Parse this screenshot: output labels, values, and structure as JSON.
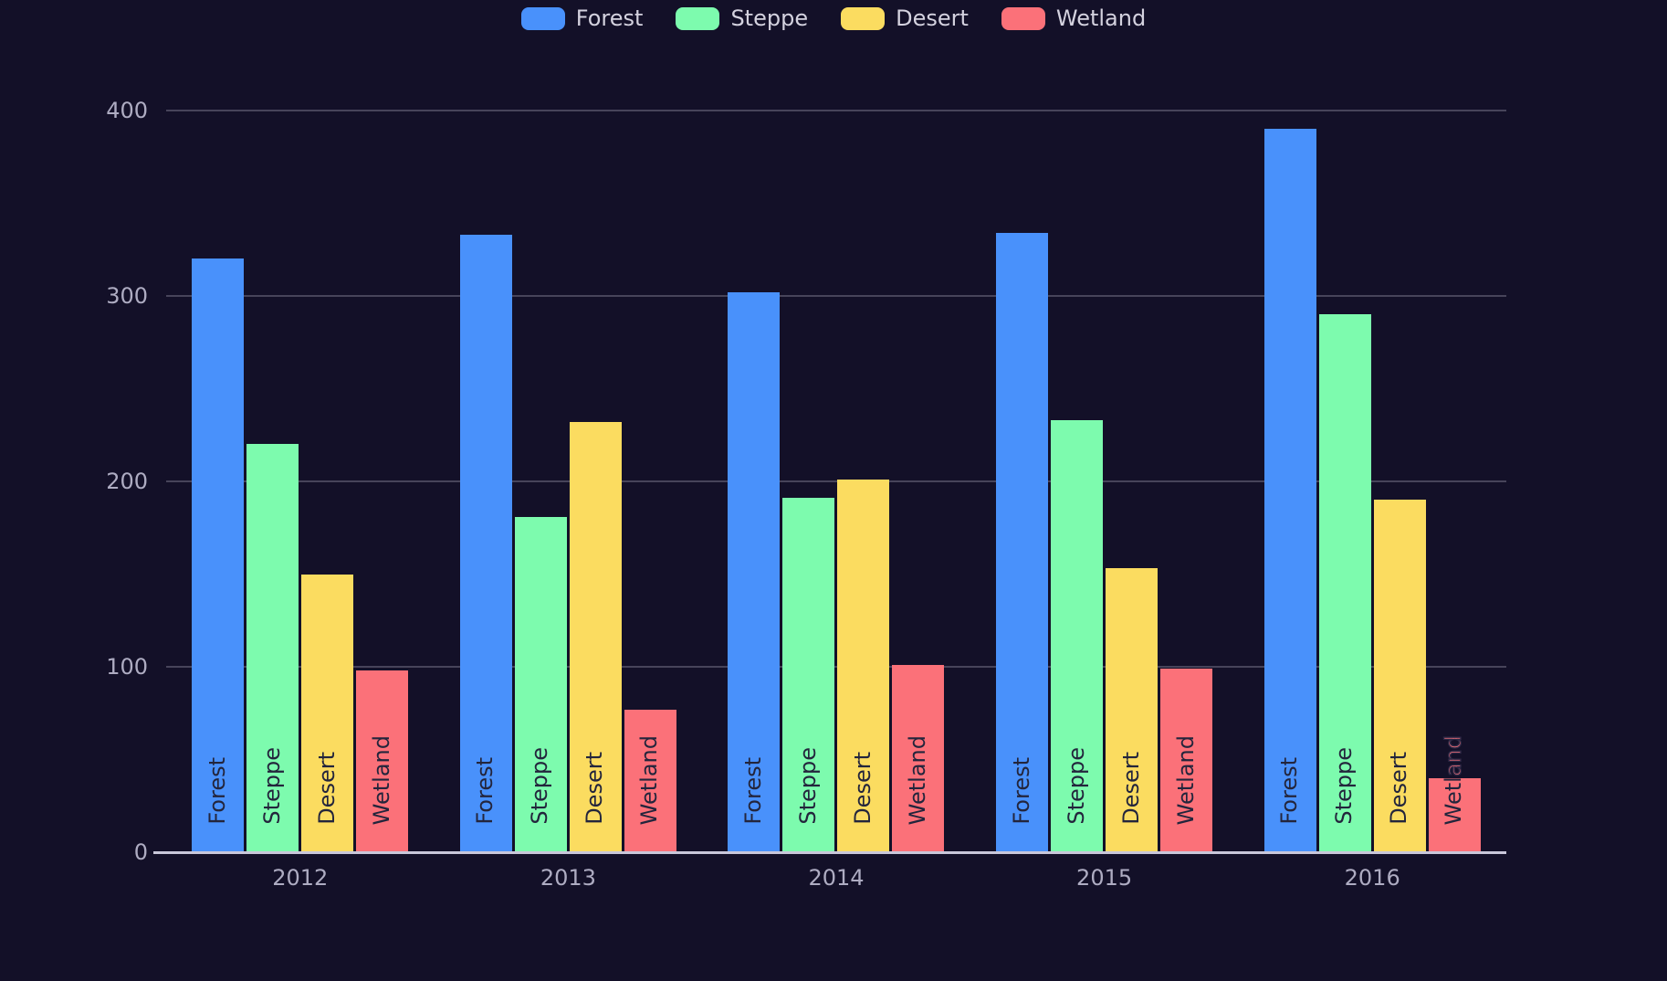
{
  "chart_data": {
    "type": "bar",
    "title": "",
    "xlabel": "",
    "ylabel": "",
    "categories": [
      "2012",
      "2013",
      "2014",
      "2015",
      "2016"
    ],
    "series": [
      {
        "name": "Forest",
        "color": "#4991fb",
        "values": [
          320,
          333,
          302,
          334,
          390
        ]
      },
      {
        "name": "Steppe",
        "color": "#7dfbae",
        "values": [
          220,
          181,
          191,
          233,
          290
        ]
      },
      {
        "name": "Desert",
        "color": "#fbdc60",
        "values": [
          150,
          232,
          201,
          153,
          190
        ]
      },
      {
        "name": "Wetland",
        "color": "#fb7179",
        "values": [
          98,
          77,
          101,
          99,
          40
        ]
      }
    ],
    "ylim": [
      0,
      400
    ],
    "y_ticks": [
      "0",
      "100",
      "200",
      "300",
      "400"
    ],
    "grid": true,
    "legend_position": "top",
    "bar_label_style": "series name rotated 90deg at base of each bar",
    "overflow_label": {
      "category": "2016",
      "series": "Wetland",
      "inside_text": "Wetl",
      "overflow_text": "and",
      "overflow_color": "#fb7179"
    }
  },
  "colors": {
    "background": "#131028",
    "grid_line": "#47445a",
    "axis_line": "#c9c7da",
    "tick_text": "#aeacc2",
    "legend_text": "#d4d2df",
    "bar_label_text": "#23253c"
  }
}
